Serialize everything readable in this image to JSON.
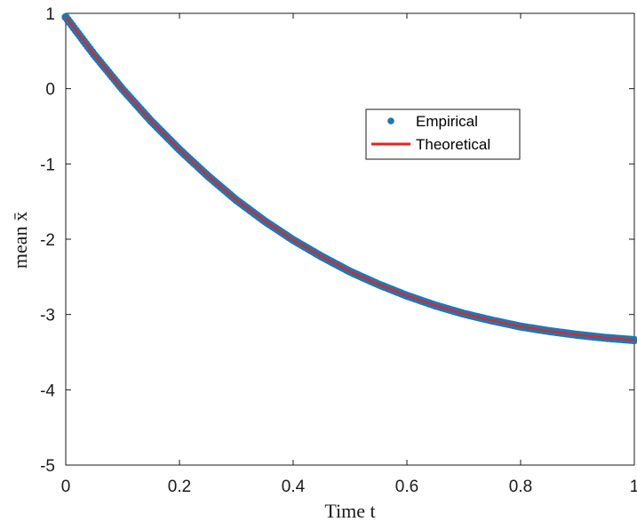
{
  "chart_data": {
    "type": "line",
    "xlabel": "Time t",
    "ylabel": "mean x̄",
    "xlim": [
      0,
      1
    ],
    "ylim": [
      -5,
      1
    ],
    "x_ticks": [
      "0",
      "0.2",
      "0.4",
      "0.6",
      "0.8",
      "1"
    ],
    "y_ticks": [
      "1",
      "0",
      "-1",
      "-2",
      "-3",
      "-4",
      "-5"
    ],
    "grid": false,
    "legend_position": "upper-center-right",
    "series": [
      {
        "name": "Empirical",
        "style": "markers",
        "color": "#1f77b4",
        "x": [
          0,
          0.05,
          0.1,
          0.15,
          0.2,
          0.25,
          0.3,
          0.35,
          0.4,
          0.45,
          0.5,
          0.55,
          0.6,
          0.65,
          0.7,
          0.75,
          0.8,
          0.85,
          0.9,
          0.95,
          1.0
        ],
        "y": [
          0.95,
          0.45,
          -0.01,
          -0.43,
          -0.81,
          -1.16,
          -1.48,
          -1.76,
          -2.01,
          -2.23,
          -2.43,
          -2.6,
          -2.75,
          -2.88,
          -2.99,
          -3.08,
          -3.16,
          -3.22,
          -3.27,
          -3.31,
          -3.34
        ]
      },
      {
        "name": "Theoretical",
        "style": "line",
        "color": "#e8211f",
        "x": [
          0,
          0.05,
          0.1,
          0.15,
          0.2,
          0.25,
          0.3,
          0.35,
          0.4,
          0.45,
          0.5,
          0.55,
          0.6,
          0.65,
          0.7,
          0.75,
          0.8,
          0.85,
          0.9,
          0.95,
          1.0
        ],
        "y": [
          0.95,
          0.45,
          -0.01,
          -0.43,
          -0.81,
          -1.16,
          -1.48,
          -1.76,
          -2.01,
          -2.23,
          -2.43,
          -2.6,
          -2.75,
          -2.88,
          -2.99,
          -3.08,
          -3.16,
          -3.22,
          -3.27,
          -3.31,
          -3.34
        ]
      }
    ]
  }
}
